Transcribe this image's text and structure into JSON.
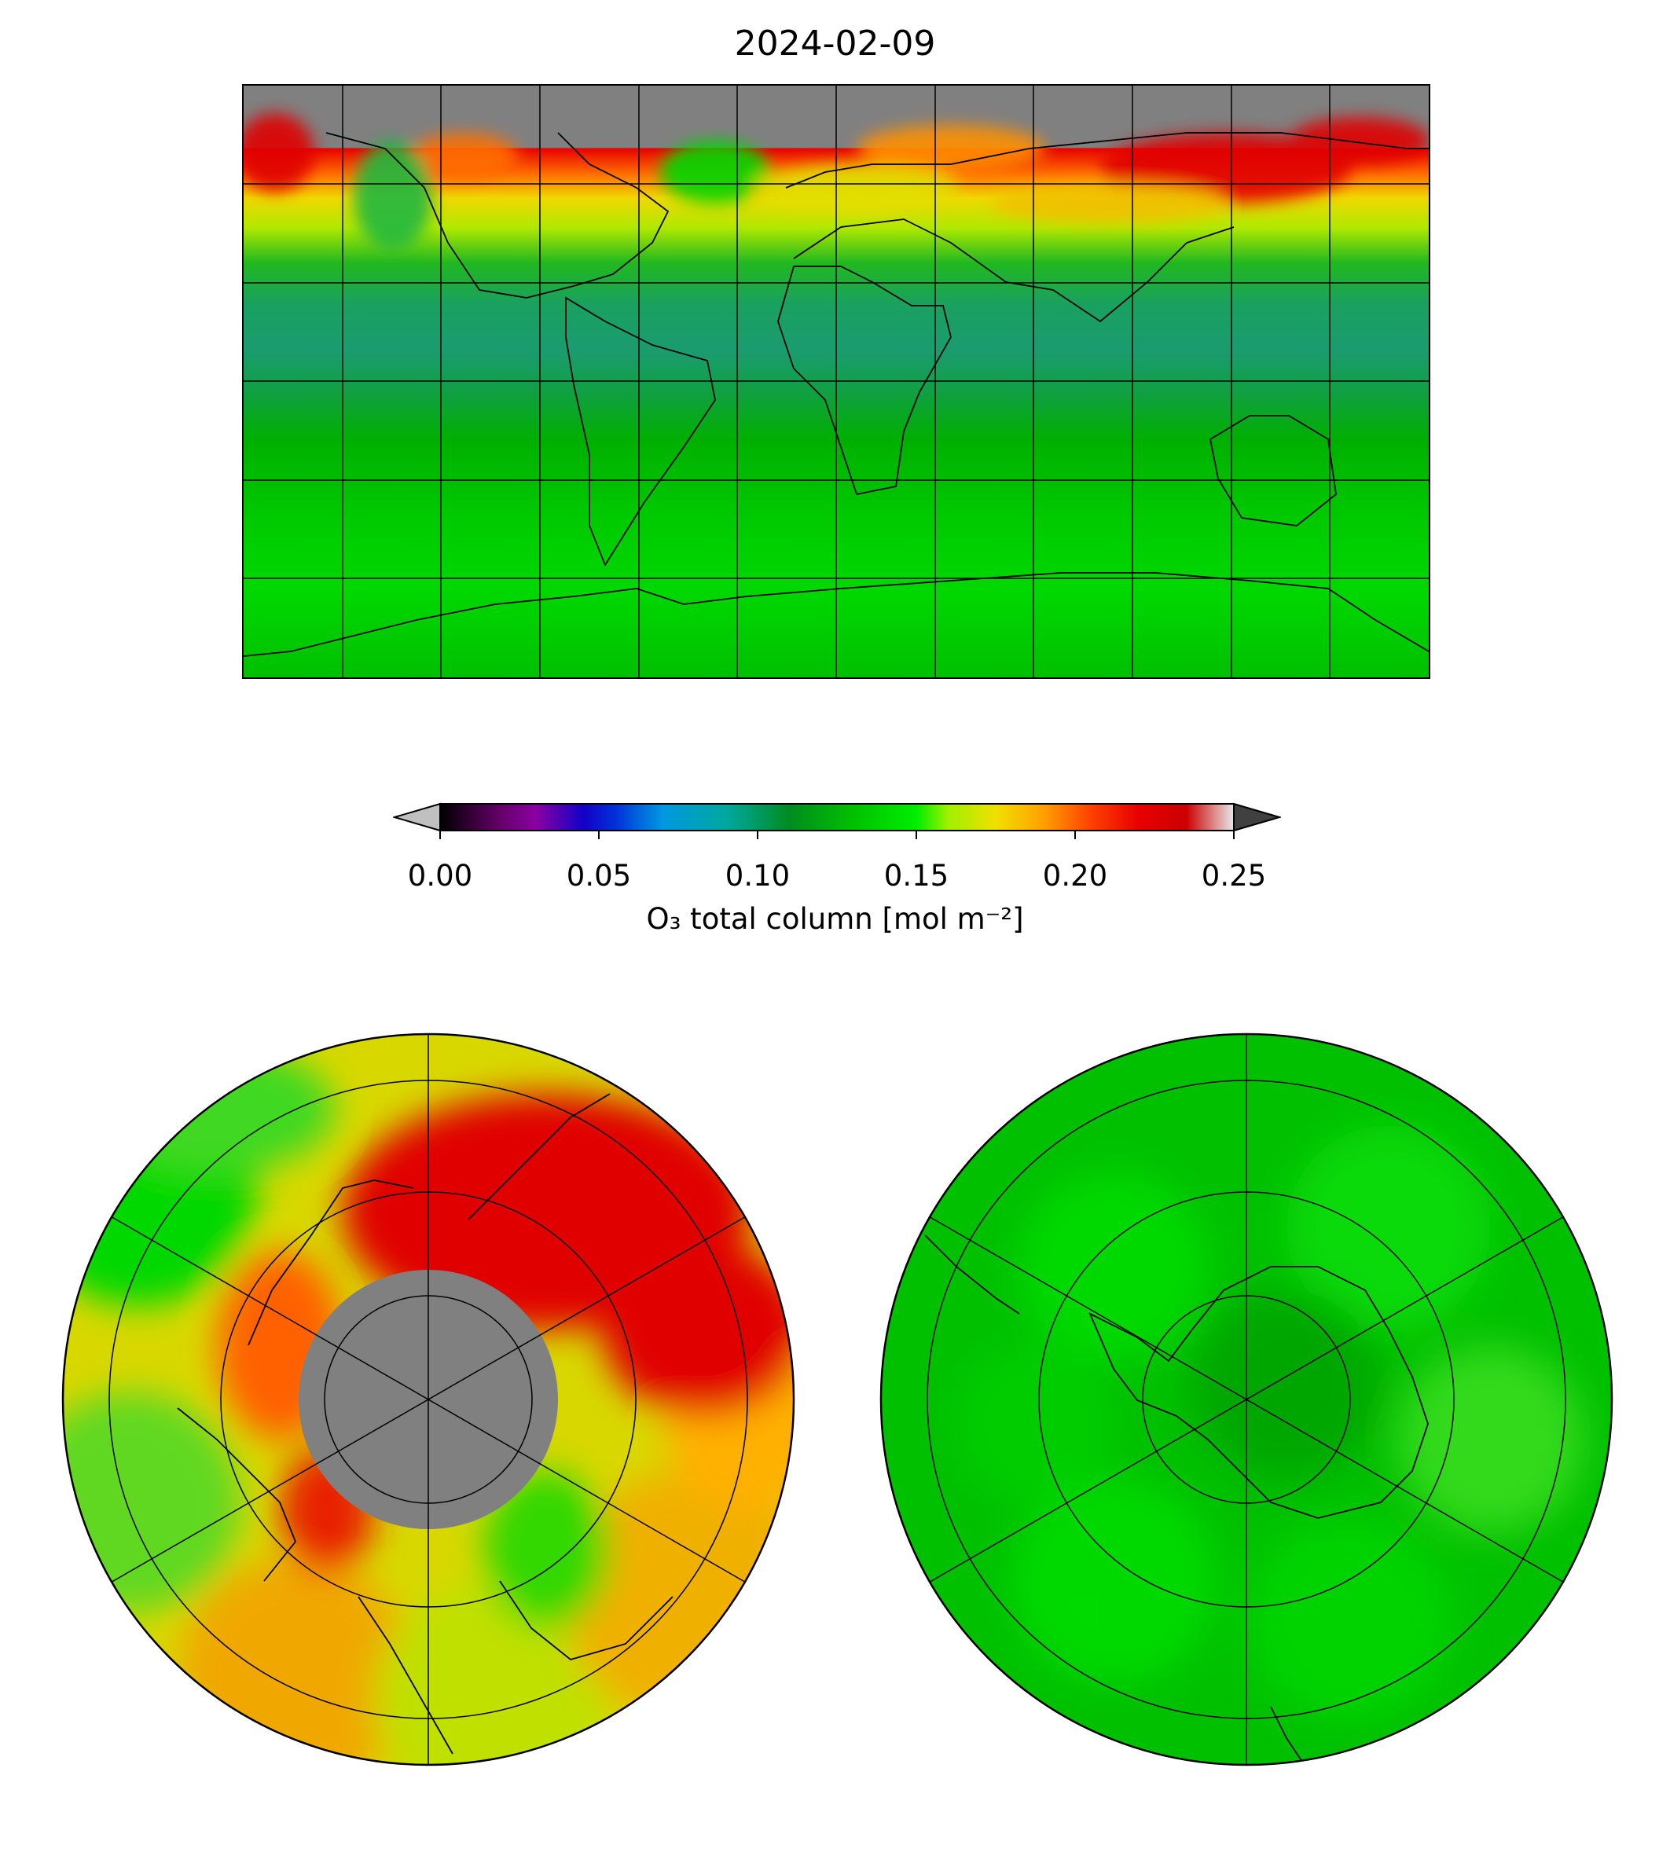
{
  "figure": {
    "title": "2024-02-09"
  },
  "colorbar": {
    "label": "O₃ total column [mol m⁻²]",
    "ticks": [
      "0.00",
      "0.05",
      "0.10",
      "0.15",
      "0.20",
      "0.25"
    ],
    "extend": "both",
    "stops": [
      {
        "value": 0.0,
        "color": "#000000"
      },
      {
        "value": 0.02,
        "color": "#6a0070"
      },
      {
        "value": 0.03,
        "color": "#8a00a0"
      },
      {
        "value": 0.045,
        "color": "#1400c8"
      },
      {
        "value": 0.055,
        "color": "#0030d8"
      },
      {
        "value": 0.07,
        "color": "#0098e0"
      },
      {
        "value": 0.09,
        "color": "#00a8a0"
      },
      {
        "value": 0.11,
        "color": "#008c20"
      },
      {
        "value": 0.13,
        "color": "#00c000"
      },
      {
        "value": 0.15,
        "color": "#00ee00"
      },
      {
        "value": 0.16,
        "color": "#a0f000"
      },
      {
        "value": 0.175,
        "color": "#f0e000"
      },
      {
        "value": 0.19,
        "color": "#ffa000"
      },
      {
        "value": 0.205,
        "color": "#ff4000"
      },
      {
        "value": 0.22,
        "color": "#e80000"
      },
      {
        "value": 0.235,
        "color": "#cc0000"
      },
      {
        "value": 0.25,
        "color": "#e8e8e8"
      }
    ],
    "under_color": "#c0c0c0",
    "over_color": "#404040"
  },
  "maps": {
    "global": {
      "projection": "plate-carree",
      "no_data_color": "#808080"
    },
    "north_polar": {
      "projection": "north-polar-stereographic",
      "no_data_color": "#808080"
    },
    "south_polar": {
      "projection": "south-polar-stereographic"
    }
  },
  "colors": {
    "low_band": "#00b400",
    "tropics": "#1aa070",
    "mid": "#00d800",
    "high_ozone": "#e00000",
    "yellow": "#f0e000",
    "orange": "#ff9800",
    "no_data": "#808080"
  }
}
